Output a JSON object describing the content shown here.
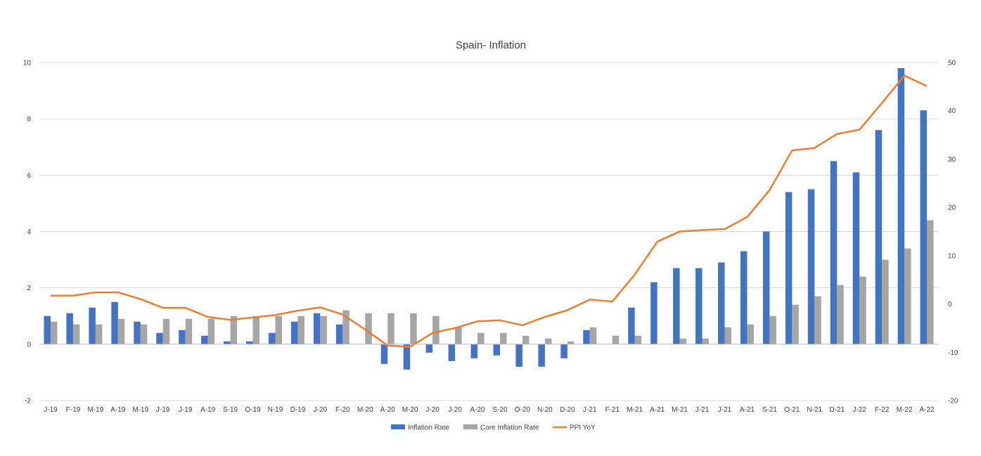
{
  "chart_data": {
    "type": "bar",
    "title": "Spain- Inflation",
    "xlabel": "",
    "ylabel": "",
    "categories": [
      "J-19",
      "F-19",
      "M-19",
      "A-19",
      "M-19",
      "J-19",
      "J-19",
      "A-19",
      "S-19",
      "O-19",
      "N-19",
      "D-19",
      "J-20",
      "F-20",
      "M-20",
      "A-20",
      "M-20",
      "J-20",
      "J-20",
      "A-20",
      "S-20",
      "O-20",
      "N-20",
      "D-20",
      "J-21",
      "F-21",
      "M-21",
      "A-21",
      "M-21",
      "J-21",
      "J-21",
      "A-21",
      "S-21",
      "O-21",
      "N-21",
      "D-21",
      "J-22",
      "F-22",
      "M-22",
      "A-22"
    ],
    "ylim": [
      -2,
      10
    ],
    "y_ticks": [
      "-2",
      "0",
      "2",
      "4",
      "6",
      "8",
      "10"
    ],
    "y2lim": [
      -20,
      50
    ],
    "y2_ticks": [
      "-20",
      "-10",
      "0",
      "10",
      "20",
      "30",
      "40",
      "50"
    ],
    "grid": true,
    "legend_position": "bottom",
    "series": [
      {
        "name": "Inflation Rate",
        "type": "bar",
        "axis": "left",
        "color": "#4472C4",
        "values": [
          1.0,
          1.1,
          1.3,
          1.5,
          0.8,
          0.4,
          0.5,
          0.3,
          0.1,
          0.1,
          0.4,
          0.8,
          1.1,
          0.7,
          0.0,
          -0.7,
          -0.9,
          -0.3,
          -0.6,
          -0.5,
          -0.4,
          -0.8,
          -0.8,
          -0.5,
          0.5,
          0.0,
          1.3,
          2.2,
          2.7,
          2.7,
          2.9,
          3.3,
          4.0,
          5.4,
          5.5,
          6.5,
          6.1,
          7.6,
          9.8,
          8.3
        ]
      },
      {
        "name": "Core Inflation Rate",
        "type": "bar",
        "axis": "left",
        "color": "#A5A5A5",
        "values": [
          0.8,
          0.7,
          0.7,
          0.9,
          0.7,
          0.9,
          0.9,
          0.9,
          1.0,
          1.0,
          1.0,
          1.0,
          1.0,
          1.2,
          1.1,
          1.1,
          1.1,
          1.0,
          0.6,
          0.4,
          0.4,
          0.3,
          0.2,
          0.1,
          0.6,
          0.3,
          0.3,
          0.0,
          0.2,
          0.2,
          0.6,
          0.7,
          1.0,
          1.4,
          1.7,
          2.1,
          2.4,
          3.0,
          3.4,
          4.4
        ]
      },
      {
        "name": "PPI YoY",
        "type": "line",
        "axis": "right",
        "color": "#ED7D31",
        "values": [
          1.7,
          1.7,
          2.4,
          2.4,
          1.0,
          -0.8,
          -0.8,
          -2.7,
          -3.3,
          -2.8,
          -2.3,
          -1.4,
          -0.7,
          -2.2,
          -5.3,
          -8.6,
          -8.9,
          -6.0,
          -5.0,
          -3.6,
          -3.4,
          -4.4,
          -2.7,
          -1.3,
          0.9,
          0.5,
          6.1,
          12.9,
          15.0,
          15.3,
          15.5,
          18.0,
          23.6,
          31.8,
          32.3,
          35.2,
          36.1,
          41.6,
          47.3,
          45.1
        ]
      }
    ]
  }
}
